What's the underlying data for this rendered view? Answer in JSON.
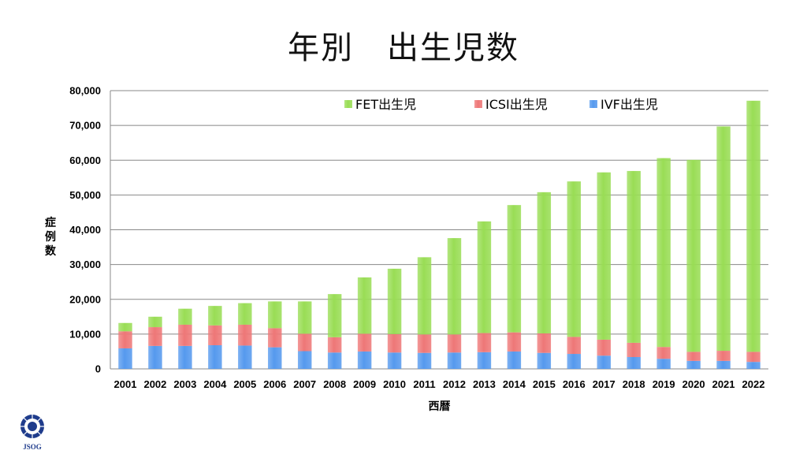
{
  "slide": {
    "title": "年別　出生児数",
    "logo_text": "JSOG"
  },
  "colors": {
    "fet": "#99dd55",
    "icsi": "#ee7777",
    "ivf": "#5599ee",
    "grid": "#888888",
    "logo": "#1f3c8c"
  },
  "chart_data": {
    "type": "bar",
    "stacked": true,
    "title": "",
    "xlabel": "西暦",
    "ylabel": "症例数",
    "ylim": [
      0,
      80000
    ],
    "yticks": [
      0,
      10000,
      20000,
      30000,
      40000,
      50000,
      60000,
      70000,
      80000
    ],
    "ytick_labels": [
      "0",
      "10,000",
      "20,000",
      "30,000",
      "40,000",
      "50,000",
      "60,000",
      "70,000",
      "80,000"
    ],
    "grid": true,
    "legend_position": "top",
    "categories": [
      "2001",
      "2002",
      "2003",
      "2004",
      "2005",
      "2006",
      "2007",
      "2008",
      "2009",
      "2010",
      "2011",
      "2012",
      "2013",
      "2014",
      "2015",
      "2016",
      "2017",
      "2018",
      "2019",
      "2020",
      "2021",
      "2022"
    ],
    "series": [
      {
        "name": "IVF出生児",
        "color_key": "ivf",
        "values": [
          5900,
          6600,
          6600,
          6800,
          6700,
          6200,
          5100,
          4700,
          5000,
          4700,
          4600,
          4700,
          4800,
          5000,
          4600,
          4300,
          3800,
          3400,
          2900,
          2300,
          2300,
          2000
        ]
      },
      {
        "name": "ICSI出生児",
        "color_key": "icsi",
        "values": [
          4900,
          5400,
          6100,
          5700,
          6000,
          5500,
          5000,
          4400,
          5100,
          5300,
          5300,
          5200,
          5500,
          5500,
          5600,
          4900,
          4600,
          4100,
          3400,
          2600,
          2900,
          2900
        ]
      },
      {
        "name": "FET出生児",
        "color_key": "fet",
        "values": [
          2400,
          3000,
          4600,
          5600,
          6200,
          7700,
          9300,
          12400,
          16200,
          18800,
          22200,
          27700,
          32100,
          36600,
          40600,
          44700,
          48100,
          49400,
          54300,
          55200,
          64500,
          72200
        ]
      }
    ],
    "legend_order": [
      "FET出生児",
      "ICSI出生児",
      "IVF出生児"
    ]
  }
}
